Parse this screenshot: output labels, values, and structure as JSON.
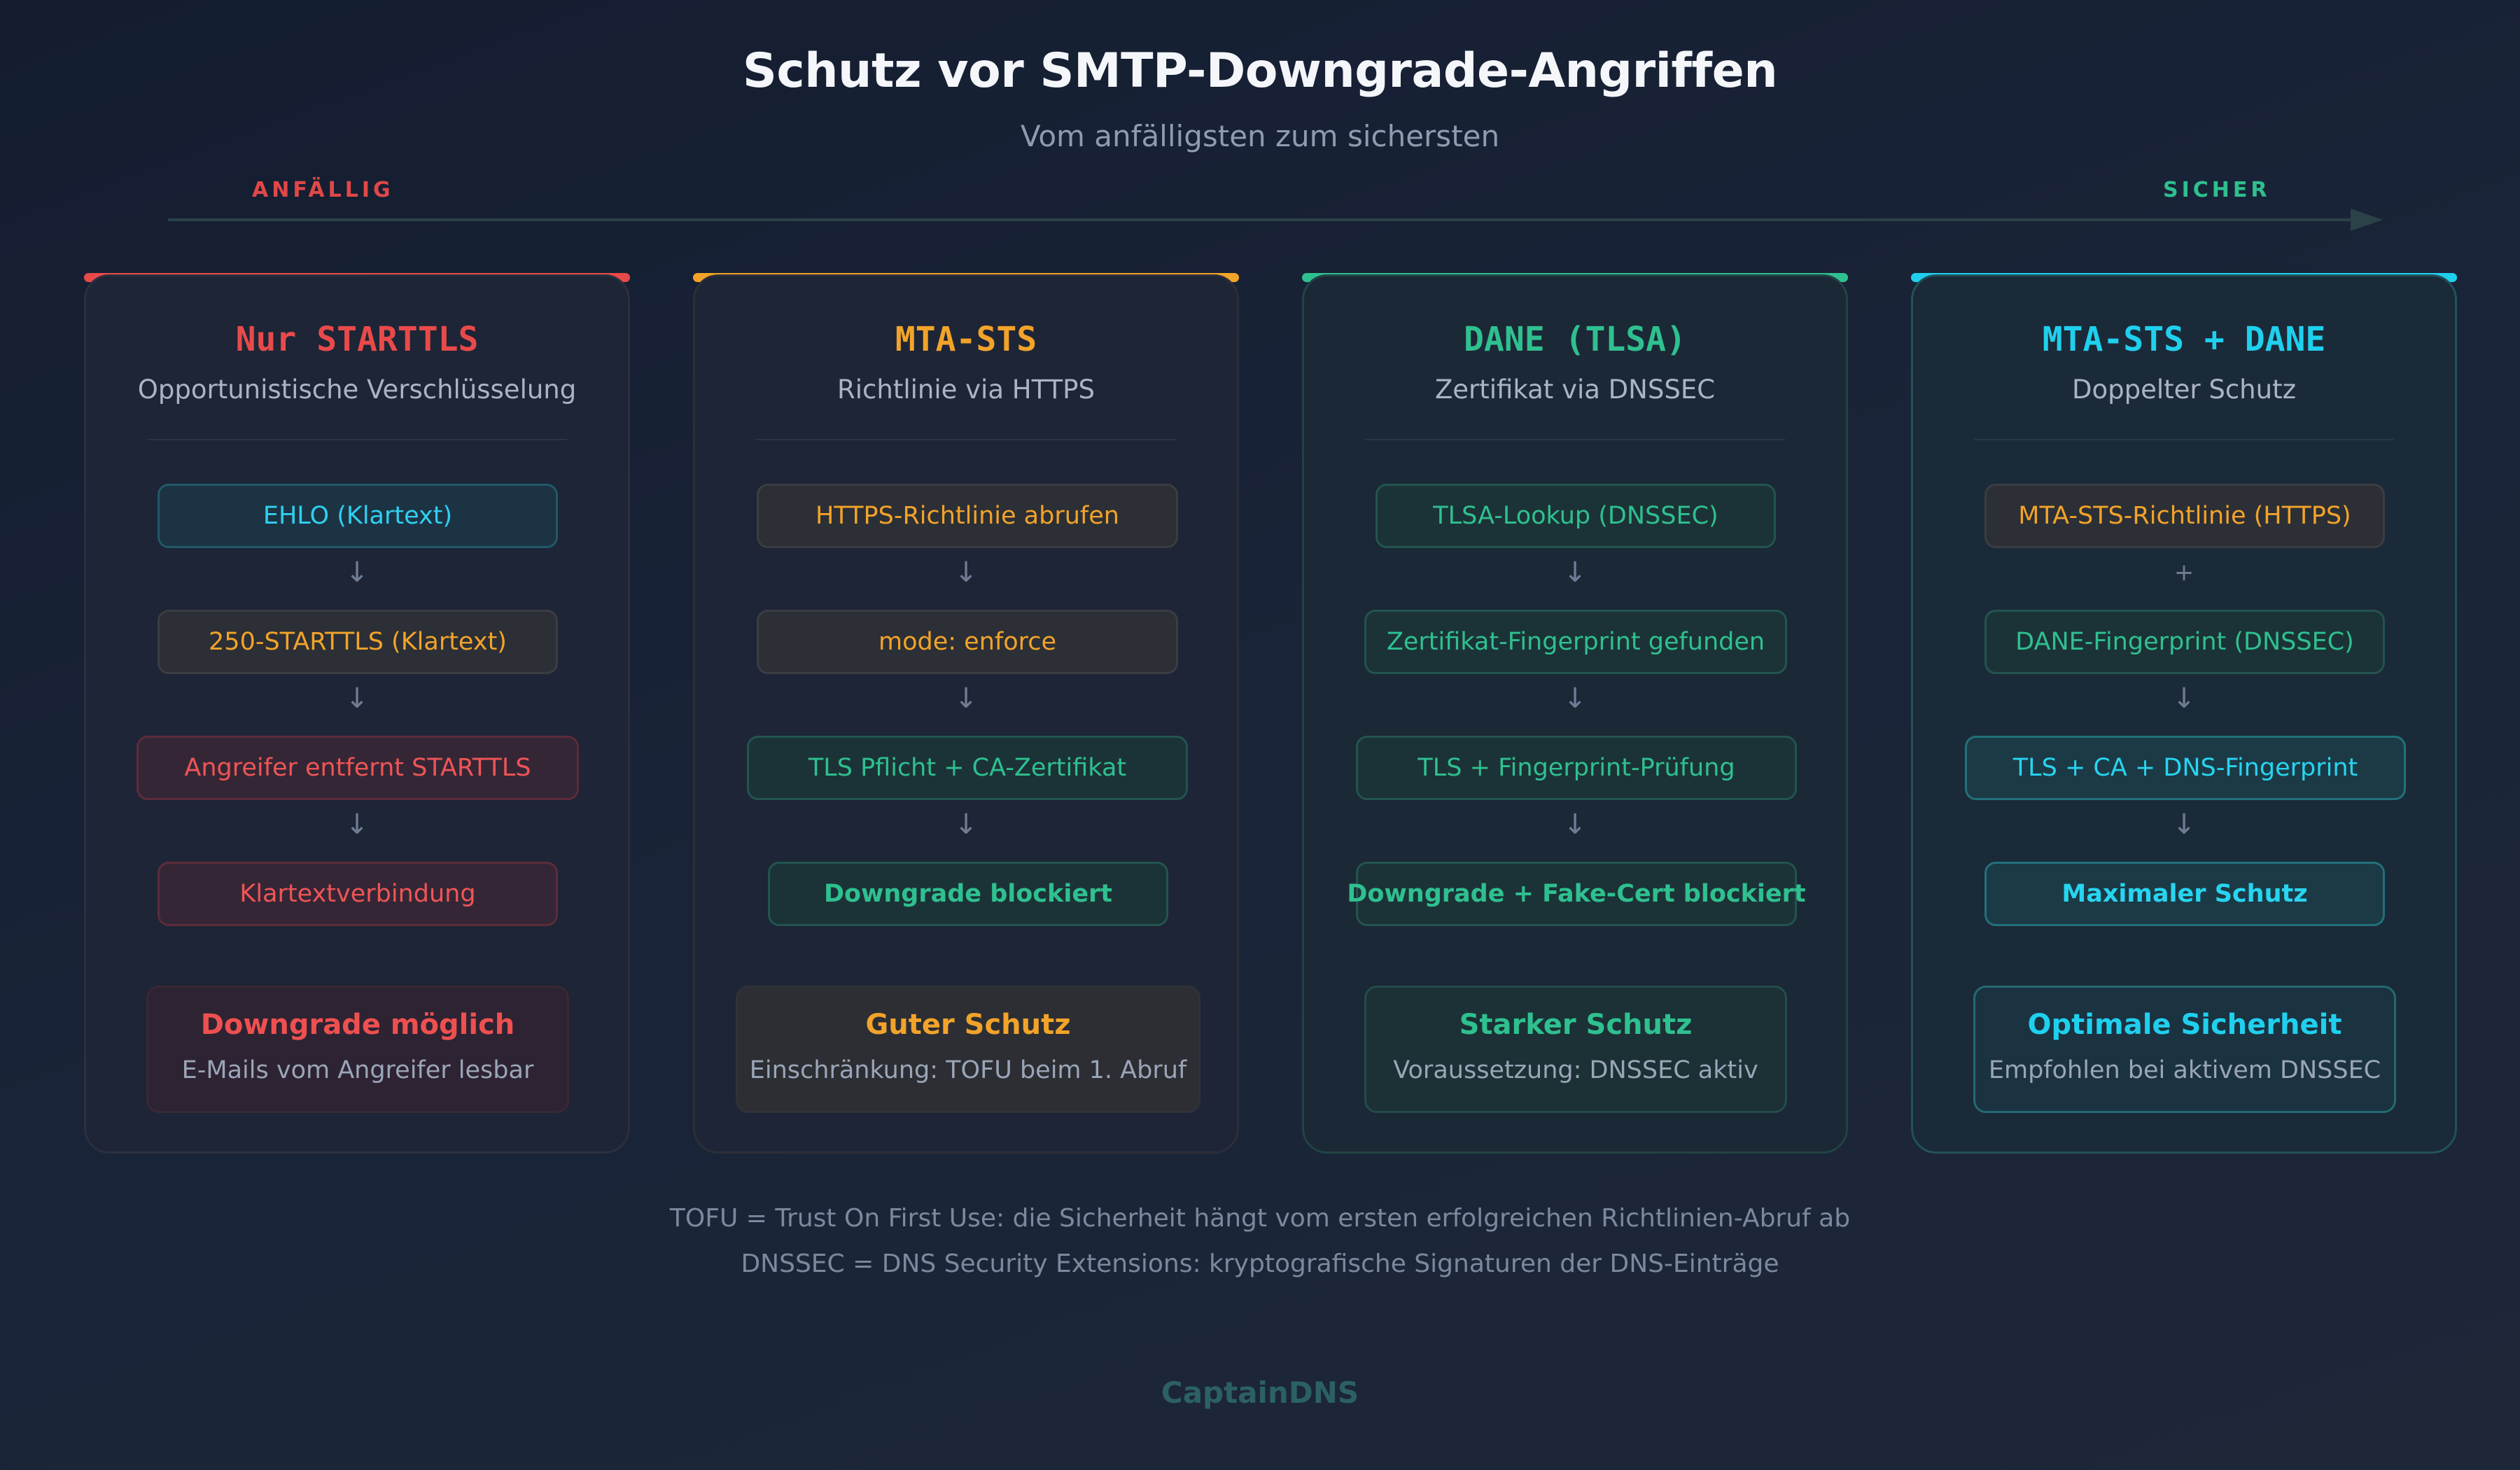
{
  "title": "Schutz vor SMTP-Downgrade-Angriffen",
  "subtitle": "Vom anfälligsten zum sichersten",
  "scale": {
    "left_label": "ANFÄLLIG",
    "right_label": "SICHER"
  },
  "columns": [
    {
      "title": "Nur STARTTLS",
      "subtitle": "Opportunistische Verschlüsselung",
      "accent": "#e84a4a",
      "steps": [
        "EHLO (Klartext)",
        "250-STARTTLS (Klartext)",
        "Angreifer entfernt STARTTLS",
        "Klartextverbindung"
      ],
      "connectors": [
        "↓",
        "↓",
        "↓"
      ],
      "result": {
        "title": "Downgrade möglich",
        "subtitle": "E-Mails vom Angreifer lesbar"
      }
    },
    {
      "title": "MTA-STS",
      "subtitle": "Richtlinie via HTTPS",
      "accent": "#f2a32a",
      "steps": [
        "HTTPS-Richtlinie abrufen",
        "mode: enforce",
        "TLS Pflicht + CA-Zertifikat",
        "Downgrade blockiert"
      ],
      "connectors": [
        "↓",
        "↓",
        "↓"
      ],
      "result": {
        "title": "Guter Schutz",
        "subtitle": "Einschränkung: TOFU beim 1. Abruf"
      }
    },
    {
      "title": "DANE (TLSA)",
      "subtitle": "Zertifikat via DNSSEC",
      "accent": "#2fc08f",
      "steps": [
        "TLSA-Lookup (DNSSEC)",
        "Zertifikat-Fingerprint gefunden",
        "TLS + Fingerprint-Prüfung",
        "Downgrade + Fake-Cert blockiert"
      ],
      "connectors": [
        "↓",
        "↓",
        "↓"
      ],
      "result": {
        "title": "Starker Schutz",
        "subtitle": "Voraussetzung: DNSSEC aktiv"
      }
    },
    {
      "title": "MTA-STS + DANE",
      "subtitle": "Doppelter Schutz",
      "accent": "#1fd0ee",
      "steps": [
        "MTA-STS-Richtlinie (HTTPS)",
        "DANE-Fingerprint (DNSSEC)",
        "TLS + CA + DNS-Fingerprint",
        "Maximaler Schutz"
      ],
      "connectors": [
        "+",
        "↓",
        "↓"
      ],
      "result": {
        "title": "Optimale Sicherheit",
        "subtitle": "Empfohlen bei aktivem DNSSEC"
      }
    }
  ],
  "footnotes": [
    "TOFU = Trust On First Use: die Sicherheit hängt vom ersten erfolgreichen Richtlinien-Abruf ab",
    "DNSSEC = DNS Security Extensions: kryptografische Signaturen der DNS-Einträge"
  ],
  "brand": "CaptainDNS"
}
